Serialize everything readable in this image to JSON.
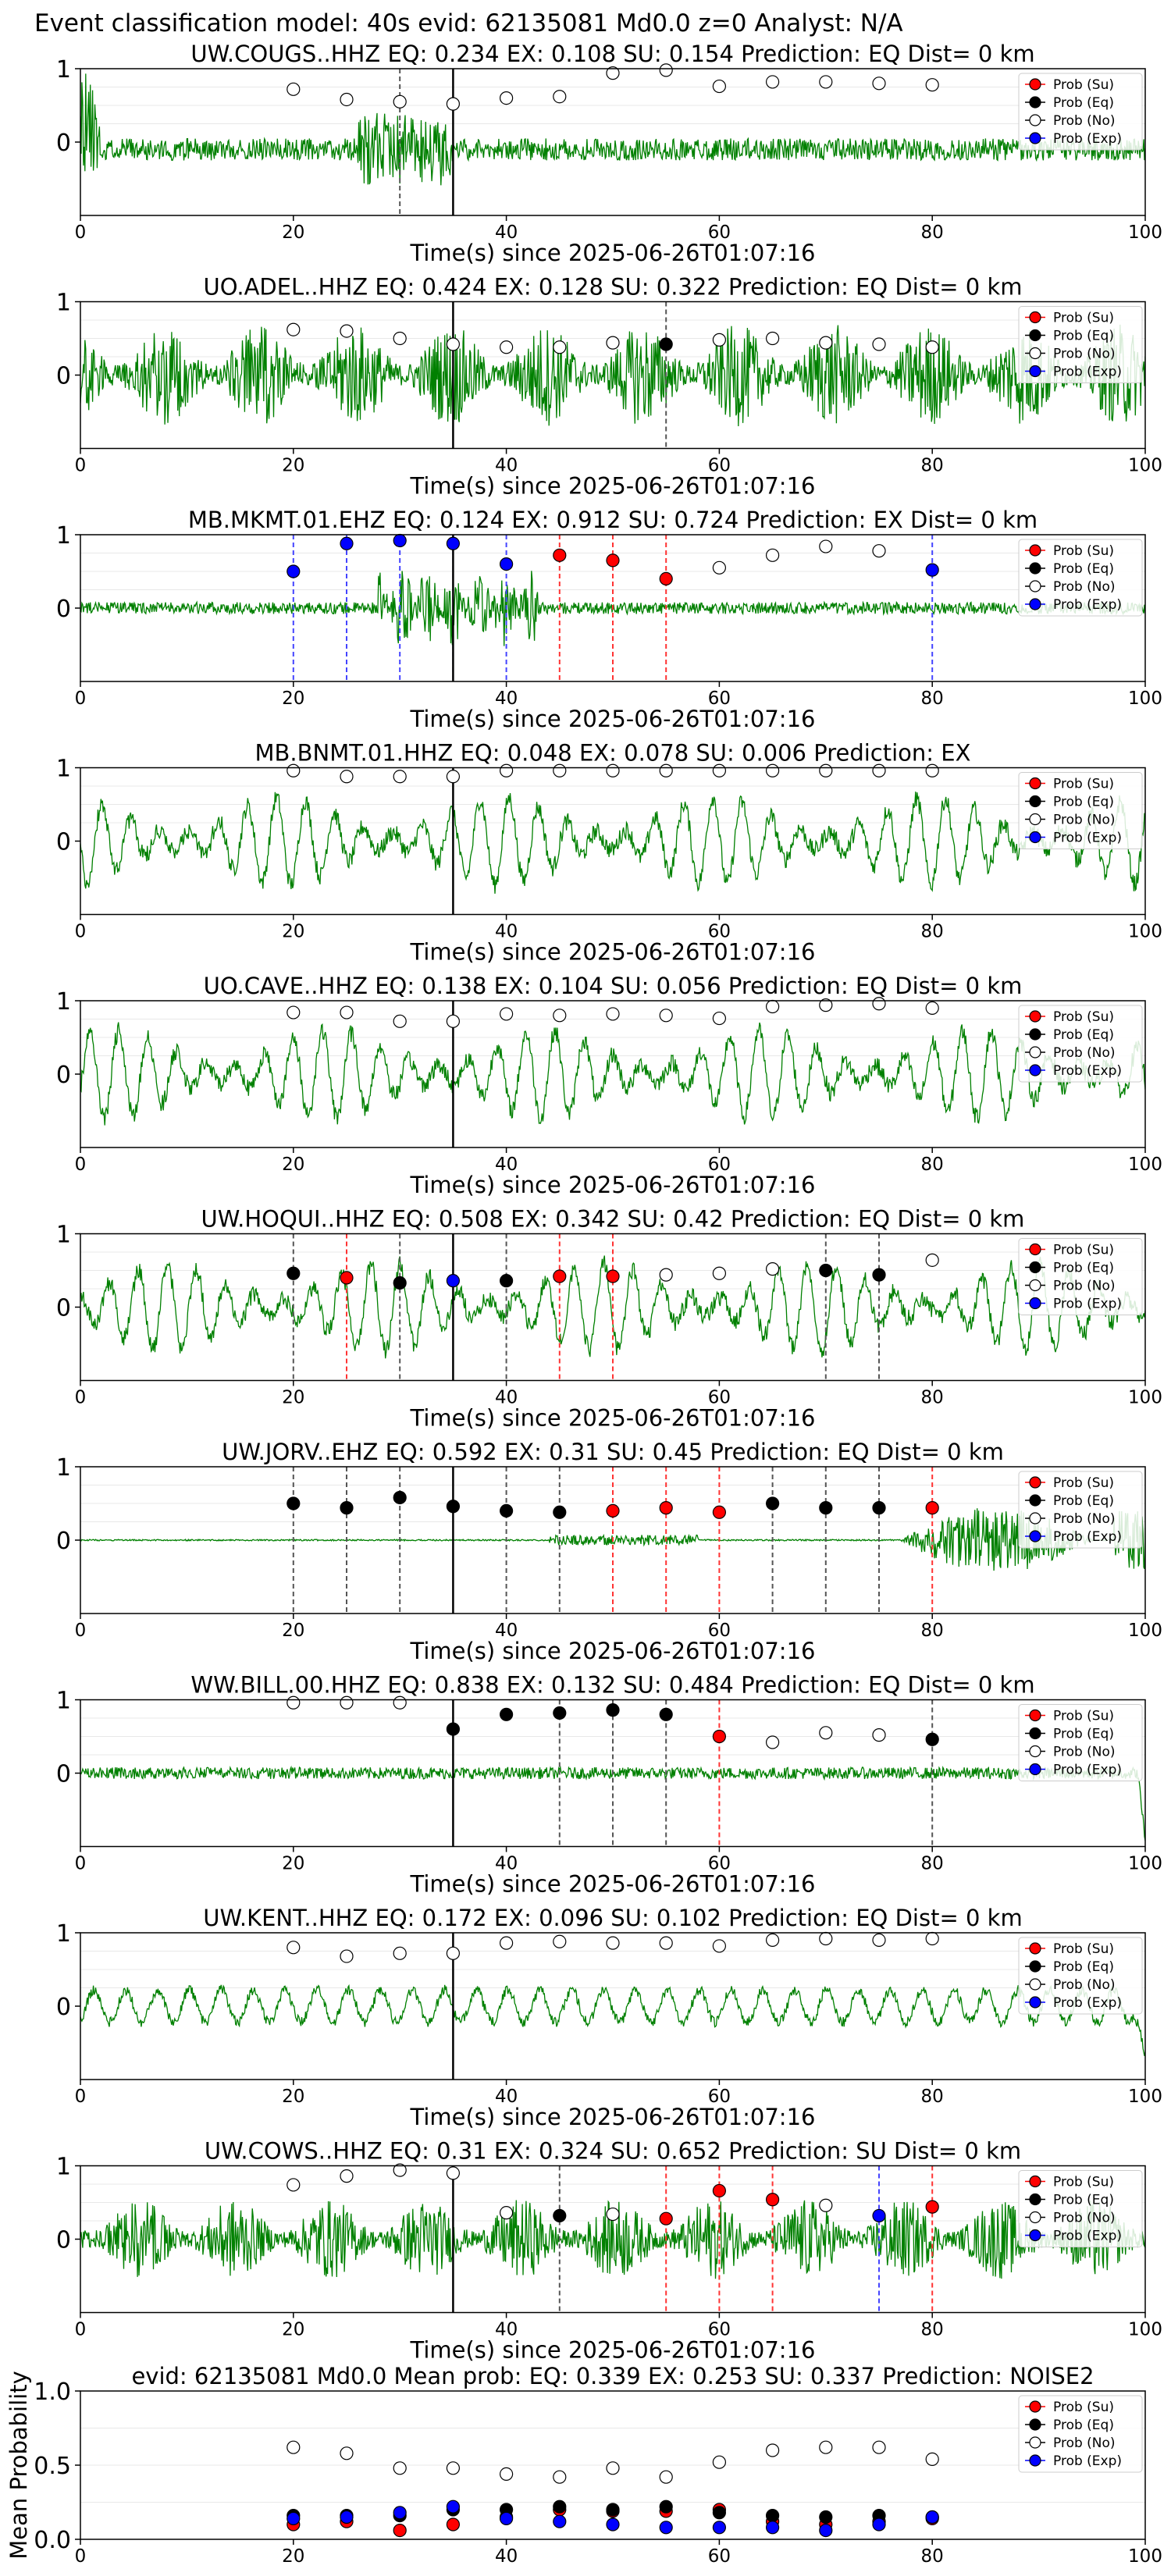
{
  "figure_title": "Event classification model: 40s evid: 62135081 Md0.0 z=0 Analyst: N/A",
  "colors": {
    "waveform": "#008000",
    "su": "#ff0000",
    "eq": "#000000",
    "no": "#ffffff",
    "exp": "#0000ff",
    "eq_line": "#555555",
    "su_line": "#ff3333",
    "exp_line": "#4444ff",
    "pick_line": "#000000",
    "grid": "#e8e8e8"
  },
  "legend": [
    "Prob (Su)",
    "Prob (Eq)",
    "Prob (No)",
    "Prob (Exp)"
  ],
  "x_label": "Time(s) since 2025-06-26T01:07:16",
  "chart_data": [
    {
      "type": "scatter",
      "title": "UW.COUGS..HHZ   EQ: 0.234  EX: 0.108  SU: 0.154   Prediction: EQ    Dist= 0 km",
      "xlabel": "Time(s) since 2025-06-26T01:07:16",
      "xlim": [
        0,
        100
      ],
      "ylim": [
        -1,
        1
      ],
      "yticks": [
        0,
        1
      ],
      "xticks": [
        0,
        20,
        40,
        60,
        80,
        100
      ],
      "pick_time": 35,
      "waveform": {
        "amp": 0.25,
        "style": "decay",
        "seed": 11
      },
      "x": [
        20,
        25,
        30,
        35,
        40,
        45,
        50,
        55,
        60,
        65,
        70,
        75,
        80
      ],
      "points": [
        "No",
        "No",
        "No",
        "No",
        "No",
        "No",
        "No",
        "No",
        "No",
        "No",
        "No",
        "No",
        "No"
      ],
      "values": [
        0.72,
        0.58,
        0.55,
        0.52,
        0.6,
        0.62,
        0.94,
        0.98,
        0.76,
        0.82,
        0.82,
        0.8,
        0.78
      ],
      "vlines": [
        {
          "x": 30,
          "cls": "Eq"
        }
      ]
    },
    {
      "type": "scatter",
      "title": "UO.ADEL..HHZ   EQ: 0.424  EX: 0.128  SU: 0.322   Prediction: EQ    Dist= 0 km",
      "xlabel": "Time(s) since 2025-06-26T01:07:16",
      "xlim": [
        0,
        100
      ],
      "ylim": [
        -1,
        1
      ],
      "yticks": [
        0,
        1
      ],
      "xticks": [
        0,
        20,
        40,
        60,
        80,
        100
      ],
      "pick_time": 35,
      "waveform": {
        "amp": 0.7,
        "style": "noise",
        "seed": 23
      },
      "x": [
        20,
        25,
        30,
        35,
        40,
        45,
        50,
        55,
        60,
        65,
        70,
        75,
        80
      ],
      "points": [
        "No",
        "No",
        "No",
        "No",
        "No",
        "No",
        "No",
        "Eq",
        "No",
        "No",
        "No",
        "No",
        "No"
      ],
      "values": [
        0.62,
        0.6,
        0.5,
        0.42,
        0.38,
        0.38,
        0.44,
        0.42,
        0.48,
        0.5,
        0.44,
        0.42,
        0.38
      ],
      "vlines": [
        {
          "x": 55,
          "cls": "Eq"
        }
      ]
    },
    {
      "type": "scatter",
      "title": "MB.MKMT.01.EHZ   EQ: 0.124  EX: 0.912  SU: 0.724   Prediction: EX    Dist= 0 km",
      "xlabel": "Time(s) since 2025-06-26T01:07:16",
      "xlim": [
        0,
        100
      ],
      "ylim": [
        -1,
        1
      ],
      "yticks": [
        0,
        1
      ],
      "xticks": [
        0,
        20,
        40,
        60,
        80,
        100
      ],
      "pick_time": 35,
      "waveform": {
        "amp": 0.15,
        "style": "burst",
        "seed": 37
      },
      "x": [
        20,
        25,
        30,
        35,
        40,
        45,
        50,
        55,
        60,
        65,
        70,
        75,
        80
      ],
      "points": [
        "Exp",
        "Exp",
        "Exp",
        "Exp",
        "Exp",
        "Su",
        "Su",
        "Su",
        "No",
        "No",
        "No",
        "No",
        "Exp"
      ],
      "values": [
        0.5,
        0.88,
        0.92,
        0.88,
        0.6,
        0.72,
        0.65,
        0.4,
        0.55,
        0.72,
        0.84,
        0.78,
        0.52
      ],
      "vlines": [
        {
          "x": 20,
          "cls": "Exp"
        },
        {
          "x": 25,
          "cls": "Exp"
        },
        {
          "x": 30,
          "cls": "Exp"
        },
        {
          "x": 35,
          "cls": "Exp"
        },
        {
          "x": 40,
          "cls": "Exp"
        },
        {
          "x": 45,
          "cls": "Su"
        },
        {
          "x": 50,
          "cls": "Su"
        },
        {
          "x": 55,
          "cls": "Su"
        },
        {
          "x": 80,
          "cls": "Exp"
        }
      ]
    },
    {
      "type": "scatter",
      "title": "MB.BNMT.01.HHZ   EQ: 0.048  EX: 0.078  SU: 0.006   Prediction: EX",
      "xlabel": "Time(s) since 2025-06-26T01:07:16",
      "xlim": [
        0,
        100
      ],
      "ylim": [
        -1,
        1
      ],
      "yticks": [
        0,
        1
      ],
      "xticks": [
        0,
        20,
        40,
        60,
        80,
        100
      ],
      "pick_time": 35,
      "waveform": {
        "amp": 0.6,
        "style": "swell",
        "seed": 41
      },
      "x": [
        20,
        25,
        30,
        35,
        40,
        45,
        50,
        55,
        60,
        65,
        70,
        75,
        80
      ],
      "points": [
        "No",
        "No",
        "No",
        "No",
        "No",
        "No",
        "No",
        "No",
        "No",
        "No",
        "No",
        "No",
        "No"
      ],
      "values": [
        0.96,
        0.88,
        0.88,
        0.88,
        0.96,
        0.96,
        0.96,
        0.96,
        0.96,
        0.96,
        0.96,
        0.96,
        0.96
      ],
      "vlines": []
    },
    {
      "type": "scatter",
      "title": "UO.CAVE..HHZ   EQ: 0.138  EX: 0.104  SU: 0.056   Prediction: EQ    Dist= 0 km",
      "xlabel": "Time(s) since 2025-06-26T01:07:16",
      "xlim": [
        0,
        100
      ],
      "ylim": [
        -1,
        1
      ],
      "yticks": [
        0,
        1
      ],
      "xticks": [
        0,
        20,
        40,
        60,
        80,
        100
      ],
      "pick_time": 35,
      "waveform": {
        "amp": 0.6,
        "style": "swell",
        "seed": 53
      },
      "x": [
        20,
        25,
        30,
        35,
        40,
        45,
        50,
        55,
        60,
        65,
        70,
        75,
        80
      ],
      "points": [
        "No",
        "No",
        "No",
        "No",
        "No",
        "No",
        "No",
        "No",
        "No",
        "No",
        "No",
        "No",
        "No"
      ],
      "values": [
        0.84,
        0.84,
        0.72,
        0.72,
        0.82,
        0.8,
        0.82,
        0.8,
        0.76,
        0.92,
        0.94,
        0.96,
        0.9
      ],
      "vlines": []
    },
    {
      "type": "scatter",
      "title": "UW.HOQUI..HHZ   EQ: 0.508  EX: 0.342  SU: 0.42   Prediction: EQ    Dist= 0 km",
      "xlabel": "Time(s) since 2025-06-26T01:07:16",
      "xlim": [
        0,
        100
      ],
      "ylim": [
        -1,
        1
      ],
      "yticks": [
        0,
        1
      ],
      "xticks": [
        0,
        20,
        40,
        60,
        80,
        100
      ],
      "pick_time": 35,
      "waveform": {
        "amp": 0.65,
        "style": "swell",
        "seed": 67
      },
      "x": [
        20,
        25,
        30,
        35,
        40,
        45,
        50,
        55,
        60,
        65,
        70,
        75,
        80
      ],
      "points": [
        "Eq",
        "Su",
        "Eq",
        "Exp",
        "Eq",
        "Su",
        "Su",
        "No",
        "No",
        "No",
        "Eq",
        "Eq",
        "No"
      ],
      "values": [
        0.46,
        0.4,
        0.33,
        0.36,
        0.36,
        0.42,
        0.42,
        0.44,
        0.46,
        0.52,
        0.5,
        0.44,
        0.64
      ],
      "vlines": [
        {
          "x": 20,
          "cls": "Eq"
        },
        {
          "x": 25,
          "cls": "Su"
        },
        {
          "x": 30,
          "cls": "Eq"
        },
        {
          "x": 40,
          "cls": "Eq"
        },
        {
          "x": 45,
          "cls": "Su"
        },
        {
          "x": 50,
          "cls": "Su"
        },
        {
          "x": 70,
          "cls": "Eq"
        },
        {
          "x": 75,
          "cls": "Eq"
        }
      ]
    },
    {
      "type": "scatter",
      "title": "UW.JORV..EHZ   EQ: 0.592  EX: 0.31  SU: 0.45   Prediction: EQ    Dist= 0 km",
      "xlabel": "Time(s) since 2025-06-26T01:07:16",
      "xlim": [
        0,
        100
      ],
      "ylim": [
        -1,
        1
      ],
      "yticks": [
        0,
        1
      ],
      "xticks": [
        0,
        20,
        40,
        60,
        80,
        100
      ],
      "pick_time": 35,
      "waveform": {
        "amp": 0.02,
        "style": "late",
        "seed": 71
      },
      "x": [
        20,
        25,
        30,
        35,
        40,
        45,
        50,
        55,
        60,
        65,
        70,
        75,
        80
      ],
      "points": [
        "Eq",
        "Eq",
        "Eq",
        "Eq",
        "Eq",
        "Eq",
        "Su",
        "Su",
        "Su",
        "Eq",
        "Eq",
        "Eq",
        "Su"
      ],
      "values": [
        0.5,
        0.44,
        0.58,
        0.46,
        0.4,
        0.38,
        0.4,
        0.44,
        0.38,
        0.5,
        0.44,
        0.44,
        0.44
      ],
      "vlines": [
        {
          "x": 20,
          "cls": "Eq"
        },
        {
          "x": 25,
          "cls": "Eq"
        },
        {
          "x": 30,
          "cls": "Eq"
        },
        {
          "x": 40,
          "cls": "Eq"
        },
        {
          "x": 45,
          "cls": "Eq"
        },
        {
          "x": 50,
          "cls": "Su"
        },
        {
          "x": 55,
          "cls": "Su"
        },
        {
          "x": 60,
          "cls": "Su"
        },
        {
          "x": 65,
          "cls": "Eq"
        },
        {
          "x": 70,
          "cls": "Eq"
        },
        {
          "x": 75,
          "cls": "Eq"
        },
        {
          "x": 80,
          "cls": "Su"
        }
      ]
    },
    {
      "type": "scatter",
      "title": "WW.BILL.00.HHZ   EQ: 0.838  EX: 0.132  SU: 0.484   Prediction: EQ    Dist= 0 km",
      "xlabel": "Time(s) since 2025-06-26T01:07:16",
      "xlim": [
        0,
        100
      ],
      "ylim": [
        -1,
        1
      ],
      "yticks": [
        0,
        1
      ],
      "xticks": [
        0,
        20,
        40,
        60,
        80,
        100
      ],
      "pick_time": 35,
      "waveform": {
        "amp": 0.1,
        "style": "noise_end",
        "seed": 83
      },
      "x": [
        20,
        25,
        30,
        35,
        40,
        45,
        50,
        55,
        60,
        65,
        70,
        75,
        80
      ],
      "points": [
        "No",
        "No",
        "No",
        "Eq",
        "Eq",
        "Eq",
        "Eq",
        "Eq",
        "Su",
        "No",
        "No",
        "No",
        "Eq"
      ],
      "values": [
        0.96,
        0.96,
        0.96,
        0.6,
        0.8,
        0.82,
        0.86,
        0.8,
        0.5,
        0.42,
        0.55,
        0.52,
        0.46
      ],
      "vlines": [
        {
          "x": 45,
          "cls": "Eq"
        },
        {
          "x": 50,
          "cls": "Eq"
        },
        {
          "x": 55,
          "cls": "Eq"
        },
        {
          "x": 60,
          "cls": "Su"
        },
        {
          "x": 80,
          "cls": "Eq"
        }
      ]
    },
    {
      "type": "scatter",
      "title": "UW.KENT..HHZ   EQ: 0.172  EX: 0.096  SU: 0.102   Prediction: EQ    Dist= 0 km",
      "xlabel": "Time(s) since 2025-06-26T01:07:16",
      "xlim": [
        0,
        100
      ],
      "ylim": [
        -1,
        1
      ],
      "yticks": [
        0,
        1
      ],
      "xticks": [
        0,
        20,
        40,
        60,
        80,
        100
      ],
      "pick_time": 35,
      "waveform": {
        "amp": 0.25,
        "style": "swell_end",
        "seed": 97
      },
      "x": [
        20,
        25,
        30,
        35,
        40,
        45,
        50,
        55,
        60,
        65,
        70,
        75,
        80
      ],
      "points": [
        "No",
        "No",
        "No",
        "No",
        "No",
        "No",
        "No",
        "No",
        "No",
        "No",
        "No",
        "No",
        "No"
      ],
      "values": [
        0.8,
        0.68,
        0.72,
        0.72,
        0.86,
        0.88,
        0.86,
        0.86,
        0.82,
        0.9,
        0.92,
        0.9,
        0.92
      ],
      "vlines": []
    },
    {
      "type": "scatter",
      "title": "UW.COWS..HHZ   EQ: 0.31  EX: 0.324  SU: 0.652   Prediction: SU    Dist= 0 km",
      "xlabel": "Time(s) since 2025-06-26T01:07:16",
      "xlim": [
        0,
        100
      ],
      "ylim": [
        -1,
        1
      ],
      "yticks": [
        0,
        1
      ],
      "xticks": [
        0,
        20,
        40,
        60,
        80,
        100
      ],
      "pick_time": 35,
      "waveform": {
        "amp": 0.55,
        "style": "noise",
        "seed": 101
      },
      "x": [
        20,
        25,
        30,
        35,
        40,
        45,
        50,
        55,
        60,
        65,
        70,
        75,
        80
      ],
      "points": [
        "No",
        "No",
        "No",
        "No",
        "No",
        "Eq",
        "No",
        "Su",
        "Su",
        "Su",
        "No",
        "Exp",
        "Su"
      ],
      "values": [
        0.74,
        0.86,
        0.94,
        0.9,
        0.36,
        0.32,
        0.34,
        0.28,
        0.66,
        0.54,
        0.46,
        0.32,
        0.44
      ],
      "vlines": [
        {
          "x": 45,
          "cls": "Eq"
        },
        {
          "x": 55,
          "cls": "Su"
        },
        {
          "x": 60,
          "cls": "Su"
        },
        {
          "x": 65,
          "cls": "Su"
        },
        {
          "x": 75,
          "cls": "Exp"
        },
        {
          "x": 80,
          "cls": "Su"
        }
      ]
    },
    {
      "type": "scatter",
      "title": "evid: 62135081  Md0.0   Mean prob:   EQ: 0.339  EX: 0.253  SU: 0.337   Prediction: NOISE2",
      "xlabel": "",
      "ylabel": "Mean Probability",
      "xlim": [
        0,
        100
      ],
      "ylim": [
        0,
        1
      ],
      "yticks": [
        0,
        0.5,
        1.0
      ],
      "ytick_labels": [
        "0.0",
        "0.5",
        "1.0"
      ],
      "xticks": [
        0,
        20,
        40,
        60,
        80,
        100
      ],
      "x": [
        20,
        25,
        30,
        35,
        40,
        45,
        50,
        55,
        60,
        65,
        70,
        75,
        80
      ],
      "series": [
        {
          "name": "Prob (Su)",
          "cls": "Su",
          "values": [
            0.1,
            0.12,
            0.06,
            0.1,
            0.15,
            0.2,
            0.19,
            0.19,
            0.2,
            0.12,
            0.1,
            0.12,
            0.14
          ]
        },
        {
          "name": "Prob (Eq)",
          "cls": "Eq",
          "values": [
            0.16,
            0.16,
            0.16,
            0.2,
            0.2,
            0.22,
            0.2,
            0.22,
            0.18,
            0.16,
            0.15,
            0.16,
            0.15
          ]
        },
        {
          "name": "Prob (No)",
          "cls": "No",
          "values": [
            0.62,
            0.58,
            0.48,
            0.48,
            0.44,
            0.42,
            0.48,
            0.42,
            0.52,
            0.6,
            0.62,
            0.62,
            0.54
          ]
        },
        {
          "name": "Prob (Exp)",
          "cls": "Exp",
          "values": [
            0.14,
            0.15,
            0.18,
            0.22,
            0.14,
            0.12,
            0.1,
            0.08,
            0.08,
            0.08,
            0.06,
            0.1,
            0.15
          ]
        }
      ]
    }
  ]
}
